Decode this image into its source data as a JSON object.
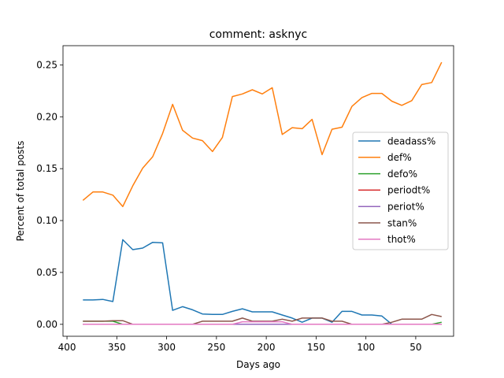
{
  "chart_data": {
    "type": "line",
    "title": "comment: asknyc",
    "xlabel": "Days ago",
    "ylabel": "Percent of total posts",
    "xlim": [
      404,
      12
    ],
    "ylim": [
      -0.0115,
      0.2685
    ],
    "x_ticks": [
      400,
      350,
      300,
      250,
      200,
      150,
      100,
      50
    ],
    "y_ticks": [
      0.0,
      0.05,
      0.1,
      0.15,
      0.2,
      0.25
    ],
    "x_tick_labels": [
      "400",
      "350",
      "300",
      "250",
      "200",
      "150",
      "100",
      "50"
    ],
    "y_tick_labels": [
      "0.00",
      "0.05",
      "0.10",
      "0.15",
      "0.20",
      "0.25"
    ],
    "grid": false,
    "legend_position": "center-right",
    "x": [
      384,
      374,
      364,
      354,
      344,
      334,
      324,
      314,
      304,
      294,
      284,
      274,
      264,
      254,
      244,
      234,
      224,
      214,
      204,
      194,
      184,
      174,
      164,
      154,
      144,
      134,
      124,
      114,
      104,
      94,
      84,
      74,
      64,
      54,
      44,
      34,
      24
    ],
    "series": [
      {
        "name": "deadass%",
        "color": "#1f77b4",
        "values": [
          0.0235,
          0.0235,
          0.024,
          0.022,
          0.0815,
          0.072,
          0.0735,
          0.079,
          0.0785,
          0.0135,
          0.017,
          0.014,
          0.01,
          0.0095,
          0.0095,
          0.0125,
          0.015,
          0.012,
          0.012,
          0.012,
          0.009,
          0.006,
          0.002,
          0.006,
          0.006,
          0.002,
          0.0125,
          0.0125,
          0.009,
          0.009,
          0.008,
          0.0,
          0.0,
          0.0,
          0.0,
          0.0,
          0.0
        ]
      },
      {
        "name": "def%",
        "color": "#ff7f0e",
        "values": [
          0.1195,
          0.1275,
          0.1275,
          0.1245,
          0.1135,
          0.1335,
          0.1505,
          0.1615,
          0.184,
          0.212,
          0.187,
          0.1795,
          0.177,
          0.1665,
          0.18,
          0.2195,
          0.222,
          0.226,
          0.222,
          0.228,
          0.183,
          0.1895,
          0.1885,
          0.1975,
          0.1635,
          0.188,
          0.19,
          0.21,
          0.2185,
          0.2225,
          0.2225,
          0.215,
          0.211,
          0.2155,
          0.231,
          0.233,
          0.2525
        ]
      },
      {
        "name": "defo%",
        "color": "#2ca02c",
        "values": [
          0.003,
          0.003,
          0.003,
          0.003,
          0.0,
          0.0,
          0.0,
          0.0,
          0.0,
          0.0,
          0.0,
          0.0,
          0.0,
          0.0,
          0.0,
          0.0,
          0.0,
          0.0,
          0.0,
          0.0,
          0.0,
          0.0,
          0.0,
          0.0,
          0.0,
          0.0,
          0.0,
          0.0,
          0.0,
          0.0,
          0.0,
          0.0,
          0.0,
          0.0,
          0.0,
          0.0,
          0.002
        ]
      },
      {
        "name": "periodt%",
        "color": "#d62728",
        "values": [
          0.0,
          0.0,
          0.0,
          0.0,
          0.0,
          0.0,
          0.0,
          0.0,
          0.0,
          0.0,
          0.0,
          0.0,
          0.0,
          0.0,
          0.0,
          0.0,
          0.0,
          0.0,
          0.0,
          0.0,
          0.0,
          0.0,
          0.0,
          0.0,
          0.0,
          0.0,
          0.0,
          0.0,
          0.0,
          0.0,
          0.0,
          0.0,
          0.0,
          0.0,
          0.0,
          0.0,
          0.0
        ]
      },
      {
        "name": "periot%",
        "color": "#9467bd",
        "values": [
          0.0,
          0.0,
          0.0,
          0.0,
          0.0,
          0.0,
          0.0,
          0.0,
          0.0,
          0.0,
          0.0,
          0.0,
          0.0,
          0.0,
          0.0,
          0.0,
          0.0,
          0.0,
          0.0,
          0.0,
          0.0,
          0.0,
          0.0,
          0.0,
          0.0,
          0.0,
          0.0,
          0.0,
          0.0,
          0.0,
          0.0,
          0.0,
          0.0,
          0.0,
          0.0,
          0.0,
          0.0
        ]
      },
      {
        "name": "stan%",
        "color": "#8c564b",
        "values": [
          0.003,
          0.003,
          0.003,
          0.0035,
          0.0035,
          0.0,
          0.0,
          0.0,
          0.0,
          0.0,
          0.0,
          0.0,
          0.003,
          0.003,
          0.003,
          0.003,
          0.006,
          0.003,
          0.003,
          0.003,
          0.005,
          0.003,
          0.006,
          0.006,
          0.006,
          0.003,
          0.003,
          0.0,
          0.0,
          0.0,
          0.0,
          0.002,
          0.005,
          0.005,
          0.005,
          0.0095,
          0.0075
        ]
      },
      {
        "name": "thot%",
        "color": "#e377c2",
        "values": [
          0.0,
          0.0,
          0.0,
          0.0,
          0.0,
          0.0,
          0.0,
          0.0,
          0.0,
          0.0,
          0.0,
          0.0,
          0.0,
          0.0,
          0.0,
          0.0,
          0.0025,
          0.0025,
          0.0025,
          0.0025,
          0.0025,
          0.0,
          0.0,
          0.0,
          0.0,
          0.0,
          0.0,
          0.0,
          0.0,
          0.0,
          0.0,
          0.0,
          0.0,
          0.0,
          0.0,
          0.0,
          0.0
        ]
      }
    ]
  }
}
